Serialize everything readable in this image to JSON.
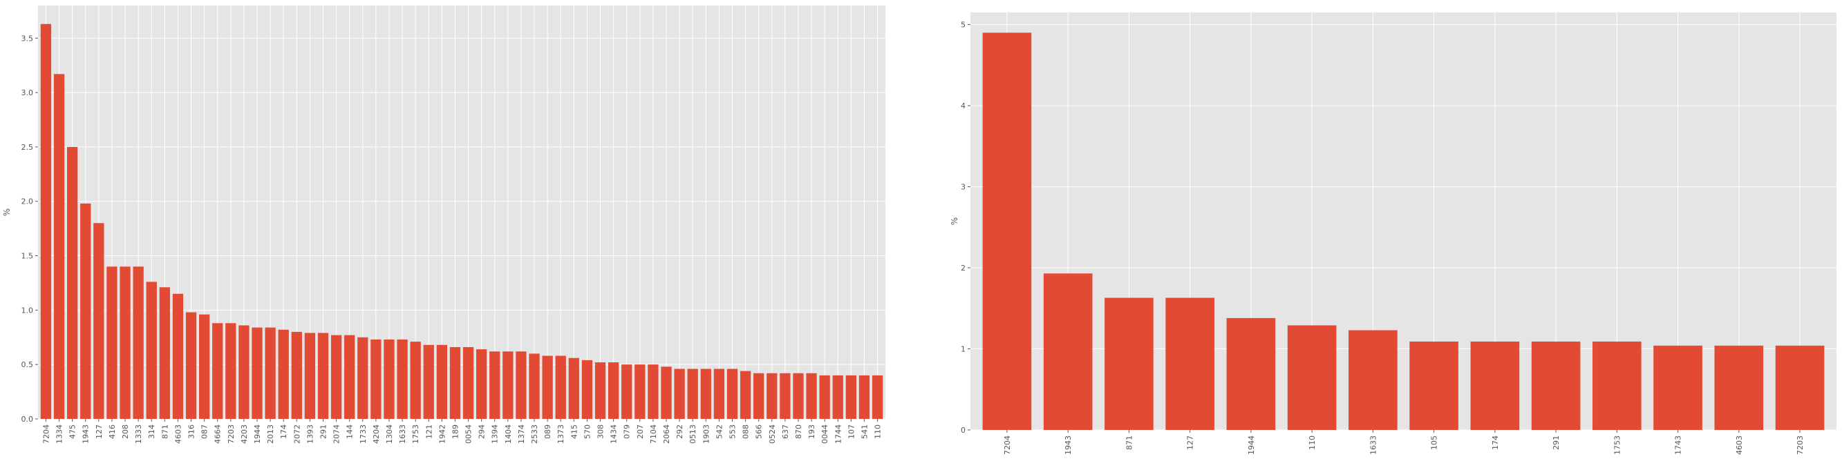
{
  "chart_data": [
    {
      "type": "bar",
      "ylabel": "%",
      "xlabel": "",
      "ylim": [
        0,
        3.8
      ],
      "yticks": [
        "0.0",
        "0.5",
        "1.0",
        "1.5",
        "2.0",
        "2.5",
        "3.0",
        "3.5"
      ],
      "grid": true,
      "bar_color": "#E24A33",
      "background": "#E5E5E5",
      "categories": [
        "7204",
        "1334",
        "475",
        "1943",
        "127",
        "416",
        "208",
        "1333",
        "314",
        "871",
        "4603",
        "316",
        "087",
        "4664",
        "7203",
        "4203",
        "1944",
        "2013",
        "174",
        "2072",
        "1393",
        "291",
        "2074",
        "144",
        "1733",
        "4204",
        "1304",
        "1633",
        "1753",
        "121",
        "1942",
        "189",
        "0054",
        "294",
        "1394",
        "1404",
        "1374",
        "2533",
        "089",
        "1373",
        "415",
        "570",
        "308",
        "1434",
        "079",
        "207",
        "7104",
        "2064",
        "292",
        "0513",
        "1903",
        "542",
        "553",
        "088",
        "566",
        "0524",
        "637",
        "870",
        "193",
        "0044",
        "1744",
        "107",
        "541",
        "110"
      ],
      "values": [
        3.63,
        3.17,
        2.5,
        1.98,
        1.8,
        1.4,
        1.4,
        1.4,
        1.26,
        1.21,
        1.15,
        0.98,
        0.96,
        0.88,
        0.88,
        0.86,
        0.84,
        0.84,
        0.82,
        0.8,
        0.79,
        0.79,
        0.77,
        0.77,
        0.75,
        0.73,
        0.73,
        0.73,
        0.71,
        0.68,
        0.68,
        0.66,
        0.66,
        0.64,
        0.62,
        0.62,
        0.62,
        0.6,
        0.58,
        0.58,
        0.56,
        0.54,
        0.52,
        0.52,
        0.5,
        0.5,
        0.5,
        0.48,
        0.46,
        0.46,
        0.46,
        0.46,
        0.46,
        0.44,
        0.42,
        0.42,
        0.42,
        0.42,
        0.42,
        0.4,
        0.4,
        0.4,
        0.4,
        0.4
      ]
    },
    {
      "type": "bar",
      "ylabel": "%",
      "xlabel": "",
      "ylim": [
        0,
        5.15
      ],
      "yticks": [
        "0",
        "1",
        "2",
        "3",
        "4",
        "5"
      ],
      "grid": true,
      "bar_color": "#E24A33",
      "background": "#E5E5E5",
      "categories": [
        "7204",
        "1943",
        "871",
        "127",
        "1944",
        "110",
        "1633",
        "105",
        "174",
        "291",
        "1753",
        "1743",
        "4603",
        "7203"
      ],
      "values": [
        4.9,
        1.93,
        1.63,
        1.63,
        1.38,
        1.29,
        1.23,
        1.09,
        1.09,
        1.09,
        1.09,
        1.04,
        1.04,
        1.04
      ]
    }
  ]
}
